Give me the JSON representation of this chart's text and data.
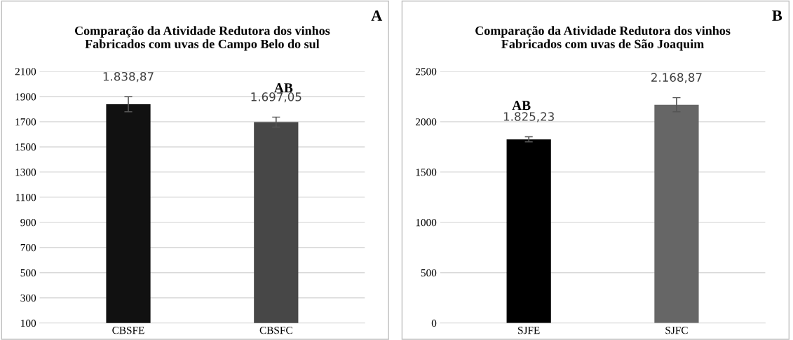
{
  "chart_data": [
    {
      "type": "bar",
      "title": "Comparação da Atividade Redutora dos vinhos\nFabricados com uvas de Campo Belo do sul",
      "categories": [
        "CBSFE",
        "CBSFC"
      ],
      "values": [
        1838.87,
        1697.05
      ],
      "colors": [
        "#111111",
        "#474747"
      ],
      "errors": [
        60,
        40
      ],
      "value_labels": [
        "1.838,87",
        "1.697,05"
      ],
      "ylim": [
        100,
        2100
      ],
      "yticks": [
        100,
        300,
        500,
        700,
        900,
        1100,
        1300,
        1500,
        1700,
        1900,
        2100
      ],
      "grid": "y",
      "annotations": [
        "A",
        "AB"
      ]
    },
    {
      "type": "bar",
      "title": "Comparação da Atividade Redutora dos vinhos\nFabricados com uvas de São Joaquim",
      "categories": [
        "SJFE",
        "SJFC"
      ],
      "values": [
        1825.23,
        2168.87
      ],
      "colors": [
        "#000000",
        "#666666"
      ],
      "errors": [
        25,
        70
      ],
      "value_labels": [
        "1.825,23",
        "2.168,87"
      ],
      "ylim": [
        0,
        2500
      ],
      "yticks": [
        0,
        500,
        1000,
        1500,
        2000,
        2500
      ],
      "grid": "y",
      "annotations": [
        "B",
        "AB"
      ]
    }
  ]
}
